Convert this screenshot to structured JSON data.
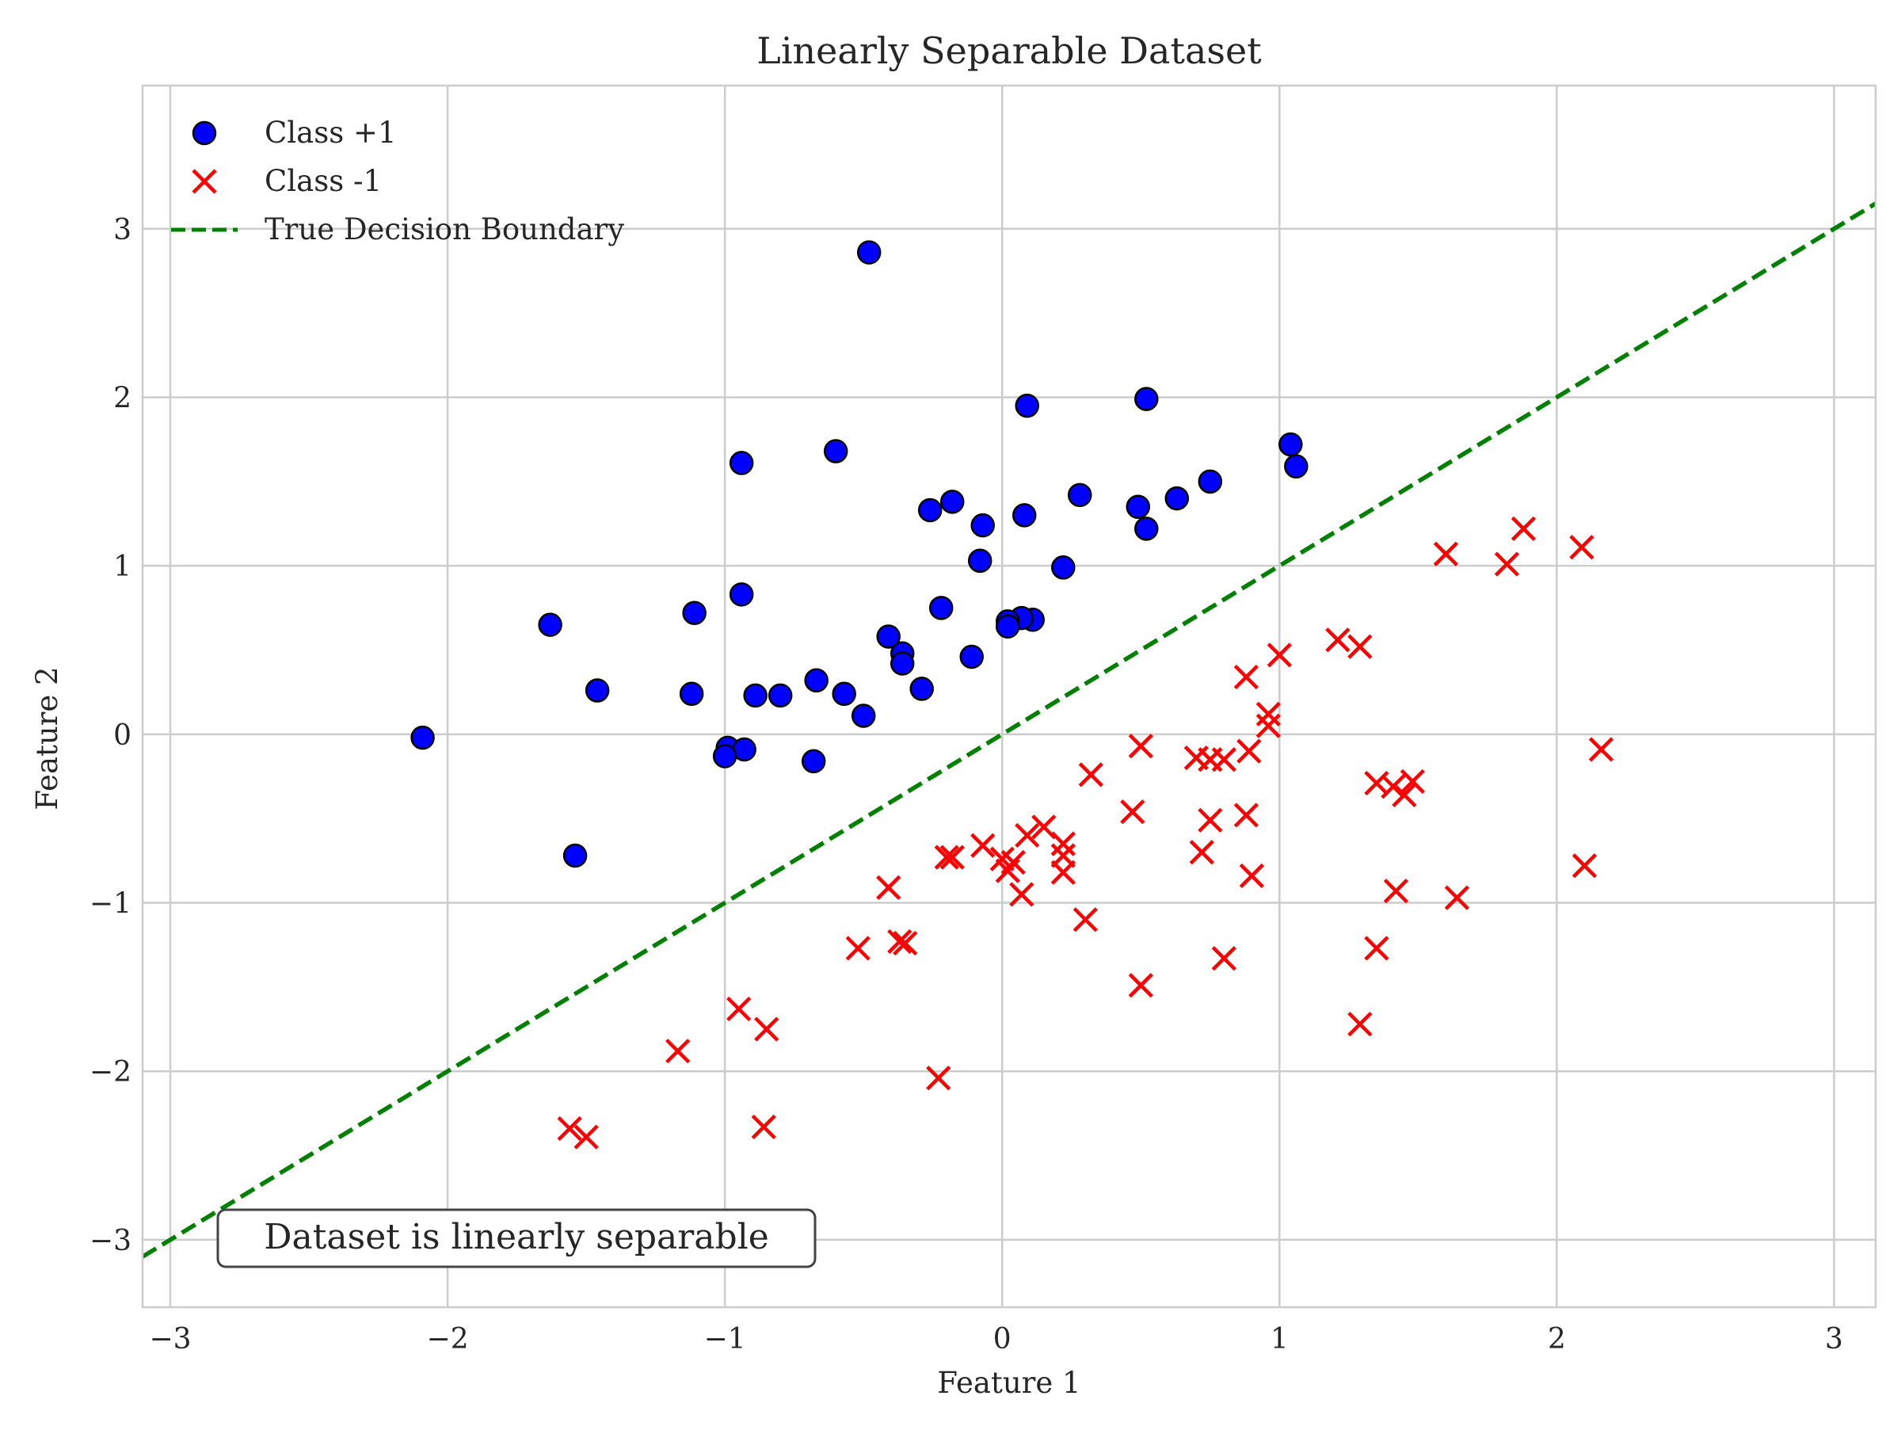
{
  "chart_data": {
    "type": "scatter",
    "title": "Linearly Separable Dataset",
    "xlabel": "Feature 1",
    "ylabel": "Feature 2",
    "xlim": [
      -3.1,
      3.15
    ],
    "ylim": [
      -3.4,
      3.85
    ],
    "xticks": [
      -3,
      -2,
      -1,
      0,
      1,
      2,
      3
    ],
    "yticks": [
      -3,
      -2,
      -1,
      0,
      1,
      2,
      3
    ],
    "xtick_labels": [
      "−3",
      "−2",
      "−1",
      "0",
      "1",
      "2",
      "3"
    ],
    "ytick_labels": [
      "−3",
      "−2",
      "−1",
      "0",
      "1",
      "2",
      "3"
    ],
    "grid": true,
    "legend_position": "top-left",
    "annotation": "Dataset is linearly separable",
    "series": [
      {
        "name": "Class +1",
        "marker": "circle",
        "color": "#0000ff",
        "edge_color": "#000000",
        "points": [
          [
            -0.48,
            2.86
          ],
          [
            0.52,
            1.99
          ],
          [
            0.09,
            1.95
          ],
          [
            1.04,
            1.72
          ],
          [
            -0.6,
            1.68
          ],
          [
            -0.94,
            1.61
          ],
          [
            1.06,
            1.59
          ],
          [
            0.75,
            1.5
          ],
          [
            0.28,
            1.42
          ],
          [
            0.63,
            1.4
          ],
          [
            -0.18,
            1.38
          ],
          [
            0.49,
            1.35
          ],
          [
            -0.26,
            1.33
          ],
          [
            0.08,
            1.3
          ],
          [
            -0.07,
            1.24
          ],
          [
            0.52,
            1.22
          ],
          [
            -0.08,
            1.03
          ],
          [
            0.22,
            0.99
          ],
          [
            -0.94,
            0.83
          ],
          [
            -0.22,
            0.75
          ],
          [
            -1.11,
            0.72
          ],
          [
            0.11,
            0.68
          ],
          [
            0.07,
            0.69
          ],
          [
            0.02,
            0.67
          ],
          [
            0.02,
            0.64
          ],
          [
            -1.63,
            0.65
          ],
          [
            -0.41,
            0.58
          ],
          [
            -0.36,
            0.48
          ],
          [
            -0.11,
            0.46
          ],
          [
            -0.36,
            0.42
          ],
          [
            -0.67,
            0.32
          ],
          [
            -0.29,
            0.27
          ],
          [
            -1.46,
            0.26
          ],
          [
            -0.57,
            0.24
          ],
          [
            -1.12,
            0.24
          ],
          [
            -0.89,
            0.23
          ],
          [
            -0.8,
            0.23
          ],
          [
            -0.5,
            0.11
          ],
          [
            -2.09,
            -0.02
          ],
          [
            -0.99,
            -0.08
          ],
          [
            -0.93,
            -0.09
          ],
          [
            -1.0,
            -0.13
          ],
          [
            -0.68,
            -0.16
          ],
          [
            -1.54,
            -0.72
          ]
        ]
      },
      {
        "name": "Class -1",
        "marker": "x",
        "color": "#ff0000",
        "points": [
          [
            1.88,
            1.22
          ],
          [
            2.09,
            1.11
          ],
          [
            1.6,
            1.07
          ],
          [
            1.82,
            1.01
          ],
          [
            1.21,
            0.56
          ],
          [
            1.29,
            0.52
          ],
          [
            1.0,
            0.47
          ],
          [
            0.88,
            0.34
          ],
          [
            0.96,
            0.12
          ],
          [
            0.96,
            0.05
          ],
          [
            0.5,
            -0.07
          ],
          [
            0.89,
            -0.1
          ],
          [
            2.16,
            -0.09
          ],
          [
            0.7,
            -0.14
          ],
          [
            0.75,
            -0.15
          ],
          [
            0.8,
            -0.15
          ],
          [
            0.32,
            -0.24
          ],
          [
            1.35,
            -0.29
          ],
          [
            1.48,
            -0.28
          ],
          [
            1.41,
            -0.31
          ],
          [
            1.45,
            -0.36
          ],
          [
            0.47,
            -0.46
          ],
          [
            0.88,
            -0.48
          ],
          [
            0.75,
            -0.51
          ],
          [
            0.15,
            -0.55
          ],
          [
            0.09,
            -0.6
          ],
          [
            0.22,
            -0.65
          ],
          [
            -0.07,
            -0.66
          ],
          [
            0.72,
            -0.7
          ],
          [
            0.22,
            -0.72
          ],
          [
            -0.2,
            -0.73
          ],
          [
            -0.18,
            -0.73
          ],
          [
            0.0,
            -0.74
          ],
          [
            0.04,
            -0.76
          ],
          [
            0.02,
            -0.81
          ],
          [
            0.22,
            -0.82
          ],
          [
            0.9,
            -0.84
          ],
          [
            -0.41,
            -0.91
          ],
          [
            1.42,
            -0.93
          ],
          [
            0.07,
            -0.95
          ],
          [
            1.64,
            -0.97
          ],
          [
            2.1,
            -0.78
          ],
          [
            0.3,
            -1.1
          ],
          [
            -0.37,
            -1.23
          ],
          [
            -0.35,
            -1.24
          ],
          [
            -0.52,
            -1.27
          ],
          [
            1.35,
            -1.27
          ],
          [
            0.8,
            -1.33
          ],
          [
            0.5,
            -1.49
          ],
          [
            -0.95,
            -1.63
          ],
          [
            1.29,
            -1.72
          ],
          [
            -0.85,
            -1.75
          ],
          [
            -1.17,
            -1.88
          ],
          [
            -0.23,
            -2.04
          ],
          [
            -1.56,
            -2.34
          ],
          [
            -1.5,
            -2.39
          ],
          [
            -0.86,
            -2.33
          ]
        ]
      },
      {
        "name": "True Decision Boundary",
        "style": "dashed-line",
        "color": "#008000",
        "points": [
          [
            -3.1,
            -3.1
          ],
          [
            3.15,
            3.15
          ]
        ]
      }
    ]
  }
}
